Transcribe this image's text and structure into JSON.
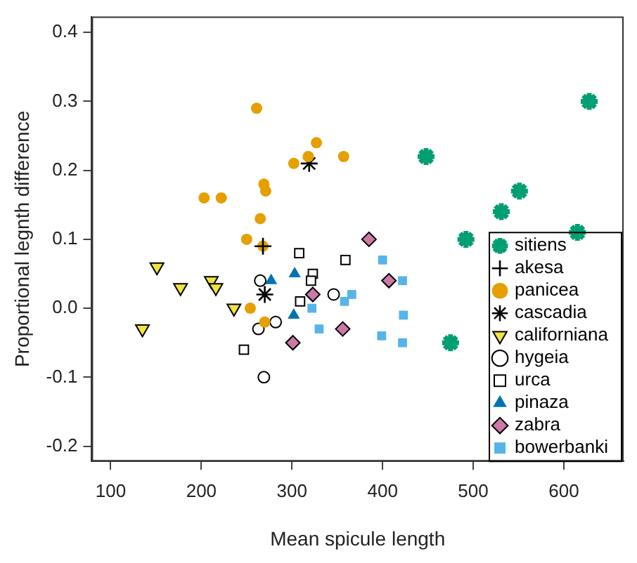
{
  "chart_data": {
    "type": "scatter",
    "xlabel": "Mean spicule length",
    "ylabel": "Proportional legnth difference",
    "xlim": [
      79,
      666
    ],
    "ylim": [
      -0.222,
      0.423
    ],
    "xticks": [
      100,
      200,
      300,
      400,
      500,
      600
    ],
    "yticks": [
      -0.2,
      -0.1,
      {
        "value": 0,
        "label": "0.0"
      },
      0.1,
      0.2,
      0.3,
      0.4
    ],
    "grid": false,
    "legend": "bottom right",
    "series": [
      {
        "name": "sitiens",
        "color": "#009e73",
        "marker": "cross",
        "x": [
          628,
          448,
          551,
          531,
          492,
          615,
          475
        ],
        "values": [
          0.3,
          0.22,
          0.17,
          0.14,
          0.1,
          0.11,
          -0.05
        ]
      },
      {
        "name": "akesa",
        "color": "#000000",
        "marker": "cross",
        "x": [
          268
        ],
        "values": [
          0.09
        ]
      },
      {
        "name": "panicea",
        "color": "#e69f00",
        "marker": "circle",
        "x": [
          261,
          327,
          318,
          302,
          357,
          269,
          271,
          203,
          222,
          265,
          250,
          268,
          254,
          270
        ],
        "values": [
          0.29,
          0.24,
          0.22,
          0.21,
          0.22,
          0.18,
          0.17,
          0.16,
          0.16,
          0.13,
          0.1,
          0.09,
          0.0,
          -0.02
        ]
      },
      {
        "name": "cascadia",
        "color": "#000000",
        "marker": "cross",
        "x": [
          319,
          270
        ],
        "values": [
          0.21,
          0.02
        ]
      },
      {
        "name": "californiana",
        "color": "#f0e442",
        "marker": "triangle-down",
        "x": [
          151,
          177,
          211,
          216,
          236,
          135
        ],
        "values": [
          0.06,
          0.03,
          0.04,
          0.03,
          0.0,
          -0.03
        ]
      },
      {
        "name": "hygeia",
        "color": "#ffffff",
        "marker": "circle",
        "x": [
          265,
          346,
          282,
          263,
          269
        ],
        "values": [
          0.04,
          0.02,
          -0.02,
          -0.03,
          -0.1
        ]
      },
      {
        "name": "urca",
        "color": "#ffffff",
        "marker": "square",
        "x": [
          308,
          359,
          323,
          321,
          309,
          247
        ],
        "values": [
          0.08,
          0.07,
          0.05,
          0.04,
          0.01,
          -0.06
        ]
      },
      {
        "name": "pinaza",
        "color": "#0072b2",
        "marker": "triangle",
        "x": [
          277,
          303,
          302
        ],
        "values": [
          0.04,
          0.05,
          -0.01
        ]
      },
      {
        "name": "zabra",
        "color": "#cc79a7",
        "marker": "diamond",
        "x": [
          385,
          323,
          356,
          301,
          407
        ],
        "values": [
          0.1,
          0.02,
          -0.03,
          -0.05,
          0.04
        ]
      },
      {
        "name": "bowerbanki",
        "color": "#56b4e9",
        "marker": "square",
        "x": [
          322,
          330,
          358,
          366,
          400,
          399,
          422,
          423,
          422
        ],
        "values": [
          0.0,
          -0.03,
          0.01,
          0.02,
          0.07,
          -0.04,
          0.04,
          -0.01,
          -0.05
        ]
      }
    ]
  }
}
